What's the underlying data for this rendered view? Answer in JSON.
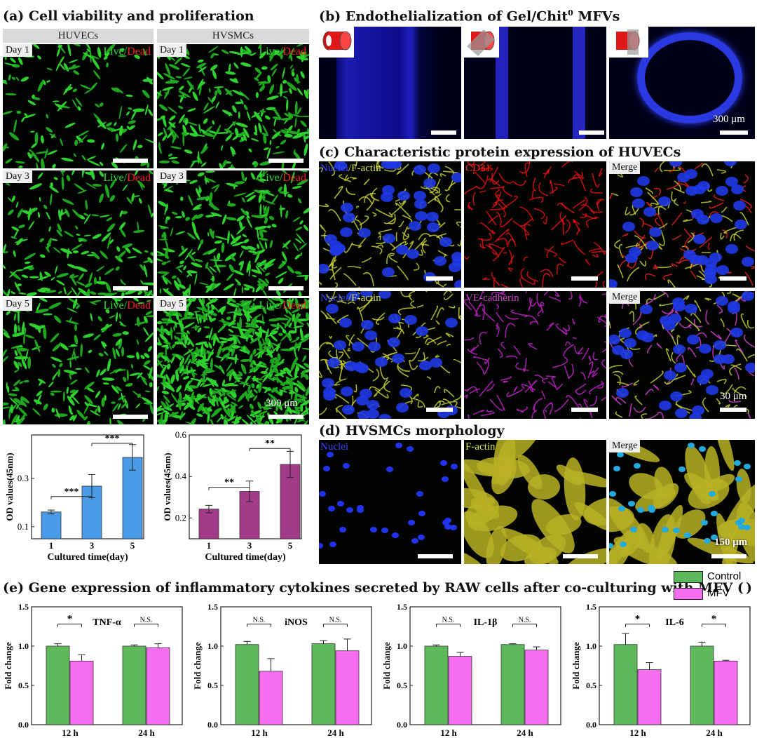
{
  "panels": {
    "a_title": "(a) Cell viability and proliferation",
    "b_title": "(b) Endothelialization of Gel/Chit",
    "b_sup": "0",
    "b_title_end": " MFVs",
    "c_title": "(c) Characteristic protein expression of HUVECs",
    "d_title": "(d) HVSMCs morphology",
    "e_title": "(e) Gene expression of inflammatory cytokines secreted by RAW cells after co-culturing with MFV (",
    "e_title_end": ")"
  },
  "cell_viability": {
    "columns": [
      "HUVECs",
      "HVSMCs"
    ],
    "days": [
      "Day 1",
      "Day 3",
      "Day 5"
    ],
    "live": "Live",
    "slash": "/",
    "dead": "Dead",
    "scale": "300 μm"
  },
  "endothelialization": {
    "scale": "300 μm"
  },
  "protein_expression": {
    "row1": [
      "Nuclei",
      "/",
      "F-actin",
      "CD31",
      "Merge"
    ],
    "row2": [
      "Nuclei",
      "/",
      "F-actin",
      "VE-cadherin",
      "Merge"
    ],
    "scale": "30 μm"
  },
  "morphology": {
    "labels": [
      "Nuclei",
      "F-actin",
      "Merge"
    ],
    "scale": "150 μm"
  },
  "legend": {
    "control": "Control",
    "mfv": "MFV"
  },
  "colors": {
    "huvec_bar": "#4a9ce8",
    "hvsmc_bar": "#a33a8a",
    "control": "#5fb85b",
    "mfv": "#f56ef0",
    "nuclei_text": "#3a44ff",
    "factin_text": "#d8e04a",
    "cd31_text": "#ff2a2a",
    "ve_text": "#d040d0",
    "live_text": "#33dd33",
    "dead_text": "#ee2222"
  },
  "chart_data": [
    {
      "type": "bar",
      "id": "od-huvec",
      "categories": [
        "1",
        "3",
        "5"
      ],
      "values": [
        0.161,
        0.268,
        0.387
      ],
      "errors": [
        0.008,
        0.048,
        0.053
      ],
      "xlabel": "Cultured time(day)",
      "ylabel": "OD values(45nm)",
      "ylim": [
        0.05,
        0.48
      ],
      "yticks": [
        "0.1",
        "0.3"
      ],
      "ytick_values": [
        0.1,
        0.3
      ],
      "sig": [
        {
          "from": 0,
          "to": 1,
          "label": "***",
          "y": 0.225
        },
        {
          "from": 1,
          "to": 2,
          "label": "***",
          "y": 0.445
        }
      ]
    },
    {
      "type": "bar",
      "id": "od-hvsmc",
      "categories": [
        "1",
        "3",
        "5"
      ],
      "values": [
        0.243,
        0.328,
        0.458
      ],
      "errors": [
        0.018,
        0.05,
        0.063
      ],
      "xlabel": "Cultured time(day)",
      "ylabel": "OD values(45nm)",
      "ylim": [
        0.1,
        0.6
      ],
      "yticks": [
        "0.2",
        "0.4",
        "0.6"
      ],
      "ytick_values": [
        0.2,
        0.4,
        0.6
      ],
      "sig": [
        {
          "from": 0,
          "to": 1,
          "label": "**",
          "y": 0.348
        },
        {
          "from": 1,
          "to": 2,
          "label": "**",
          "y": 0.535
        }
      ]
    },
    {
      "type": "bar",
      "id": "tnf",
      "title": "TNF-α",
      "categories": [
        "12 h",
        "24 h"
      ],
      "series": [
        {
          "name": "Control",
          "values": [
            1.0,
            1.0
          ],
          "errors": [
            0.03,
            0.015
          ]
        },
        {
          "name": "MFV",
          "values": [
            0.81,
            0.98
          ],
          "errors": [
            0.08,
            0.05
          ]
        }
      ],
      "ylabel": "Fold change",
      "ylim": [
        0,
        1.5
      ],
      "yticks": [
        "0.0",
        "0.5",
        "1.0",
        "1.5"
      ],
      "ytick_values": [
        0,
        0.5,
        1.0,
        1.5
      ],
      "sig": [
        "*",
        "N.S."
      ]
    },
    {
      "type": "bar",
      "id": "inos",
      "title": "iNOS",
      "categories": [
        "12 h",
        "24 h"
      ],
      "series": [
        {
          "name": "Control",
          "values": [
            1.02,
            1.03
          ],
          "errors": [
            0.04,
            0.04
          ]
        },
        {
          "name": "MFV",
          "values": [
            0.68,
            0.94
          ],
          "errors": [
            0.16,
            0.15
          ]
        }
      ],
      "ylabel": "Fold change",
      "ylim": [
        0,
        1.5
      ],
      "yticks": [
        "0.0",
        "0.5",
        "1.0",
        "1.5"
      ],
      "ytick_values": [
        0,
        0.5,
        1.0,
        1.5
      ],
      "sig": [
        "N.S.",
        "N.S."
      ]
    },
    {
      "type": "bar",
      "id": "il1b",
      "title": "IL-1β",
      "categories": [
        "12 h",
        "24 h"
      ],
      "series": [
        {
          "name": "Control",
          "values": [
            1.0,
            1.02
          ],
          "errors": [
            0.015,
            0.01
          ]
        },
        {
          "name": "MFV",
          "values": [
            0.87,
            0.95
          ],
          "errors": [
            0.05,
            0.04
          ]
        }
      ],
      "ylabel": "Fold change",
      "ylim": [
        0,
        1.5
      ],
      "yticks": [
        "0.0",
        "0.5",
        "1.0",
        "1.5"
      ],
      "ytick_values": [
        0,
        0.5,
        1.0,
        1.5
      ],
      "sig": [
        "N.S.",
        "N.S."
      ]
    },
    {
      "type": "bar",
      "id": "il6",
      "title": "IL-6",
      "categories": [
        "12 h",
        "24 h"
      ],
      "series": [
        {
          "name": "Control",
          "values": [
            1.02,
            1.0
          ],
          "errors": [
            0.14,
            0.05
          ]
        },
        {
          "name": "MFV",
          "values": [
            0.7,
            0.81
          ],
          "errors": [
            0.09,
            0.01
          ]
        }
      ],
      "ylabel": "Fold change",
      "ylim": [
        0,
        1.5
      ],
      "yticks": [
        "0.0",
        "0.5",
        "1.0",
        "1.5"
      ],
      "ytick_values": [
        0,
        0.5,
        1.0,
        1.5
      ],
      "sig": [
        "*",
        "*"
      ]
    }
  ]
}
